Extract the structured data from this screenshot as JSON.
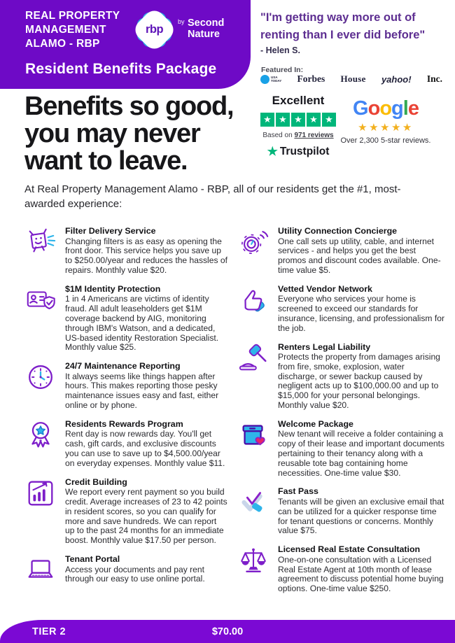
{
  "header": {
    "company_name": "REAL PROPERTY\nMANAGEMENT\nALAMO - RBP",
    "logo_text": "rbp",
    "logo_by": "by",
    "logo_brand": "Second\nNature",
    "package_title": "Resident Benefits Package"
  },
  "testimonial": {
    "quote": "\"I'm getting way more out of\nrenting than I ever did before\"",
    "attribution": "- Helen S."
  },
  "featured": {
    "label": "Featured In:",
    "logos": [
      {
        "name": "usa-today",
        "text": "USA TODAY"
      },
      {
        "name": "forbes",
        "text": "Forbes"
      },
      {
        "name": "house-beautiful",
        "text": "House"
      },
      {
        "name": "yahoo",
        "text": "yahoo!"
      },
      {
        "name": "inc",
        "text": "Inc."
      }
    ]
  },
  "ratings": {
    "trustpilot": {
      "headline": "Excellent",
      "stars": 5,
      "based_on_prefix": "Based on ",
      "review_count": "971 reviews",
      "brand": "Trustpilot"
    },
    "google": {
      "brand": "Google",
      "stars": 5,
      "caption": "Over 2,300 5-star reviews."
    }
  },
  "hero": {
    "title": "Benefits so good,\nyou may never\nwant to leave.",
    "subtitle": "At Real Property Management Alamo - RBP, all of our residents get the #1, most-awarded experience:"
  },
  "benefits": {
    "left": [
      {
        "icon": "filter-delivery",
        "title": "Filter Delivery Service",
        "description": "Changing filters is as easy as opening the front door. This service helps you save up to $250.00/year and reduces the hassles of repairs. Monthly value $20."
      },
      {
        "icon": "identity-protection",
        "title": "$1M Identity Protection",
        "description": "1 in 4 Americans are victims of identity fraud. All adult leaseholders get $1M coverage backend by AIG, monitoring through IBM's Watson, and a dedicated, US-based identity Restoration Specialist. Monthly value $25."
      },
      {
        "icon": "maintenance-clock",
        "title": "24/7 Maintenance Reporting",
        "description": "It always seems like things happen after hours. This makes reporting those pesky maintenance issues easy and fast, either online or by phone."
      },
      {
        "icon": "rewards-medal",
        "title": "Residents Rewards Program",
        "description": "Rent day is now rewards day. You'll get cash, gift cards, and exclusive discounts you can use to save up to $4,500.00/year on everyday expenses. Monthly value $11."
      },
      {
        "icon": "credit-building",
        "title": "Credit Building",
        "description": "We report every rent payment so you build credit. Average increases of 23 to 42 points in resident scores, so you can qualify for more and save hundreds. We can report up to the past 24 months for an immediate boost. Monthly value $17.50 per person."
      },
      {
        "icon": "tenant-portal",
        "title": "Tenant Portal",
        "description": "Access your documents and pay rent through our easy to use online portal."
      }
    ],
    "right": [
      {
        "icon": "utility-concierge",
        "title": "Utility Connection Concierge",
        "description": "One call sets up utility, cable, and internet services - and helps you get the best promos and discount codes available. One-time value $5."
      },
      {
        "icon": "vendor-network",
        "title": "Vetted Vendor Network",
        "description": "Everyone who services your home is screened to exceed our standards for insurance, licensing, and professionalism for the job."
      },
      {
        "icon": "legal-liability",
        "title": "Renters Legal Liability",
        "description": "Protects the property from damages arising from fire, smoke, explosion, water discharge, or sewer backup caused by negligent acts up to $100,000.00 and up to $15,000 for your personal belongings. Monthly value $20."
      },
      {
        "icon": "welcome-package",
        "title": "Welcome Package",
        "description": "New tenant will receive a folder containing a copy of their lease and important documents pertaining to their tenancy along with a reusable tote bag containing home necessities. One-time value $30."
      },
      {
        "icon": "fast-pass",
        "title": "Fast Pass",
        "description": "Tenants will be given an exclusive email that can be utilized for a quicker response time for tenant questions or concerns. Monthly value $75."
      },
      {
        "icon": "real-estate-scales",
        "title": "Licensed Real Estate Consultation",
        "description": "One-on-one consultation with a Licensed Real Estate Agent at 10th month of lease agreement to discuss potential home buying options. One-time value $250."
      }
    ]
  },
  "footer": {
    "tier": "TIER 2",
    "price": "$70.00"
  },
  "colors": {
    "brand_purple": "#6e0ac6",
    "footer_purple": "#7b09d4",
    "quote_purple": "#5d2e91",
    "icon_purple": "#7d1ec9",
    "icon_cyan": "#2eb4ea",
    "trustpilot_green": "#00b67a",
    "google_star_gold": "#f2b01e",
    "heart_red": "#e62468"
  }
}
